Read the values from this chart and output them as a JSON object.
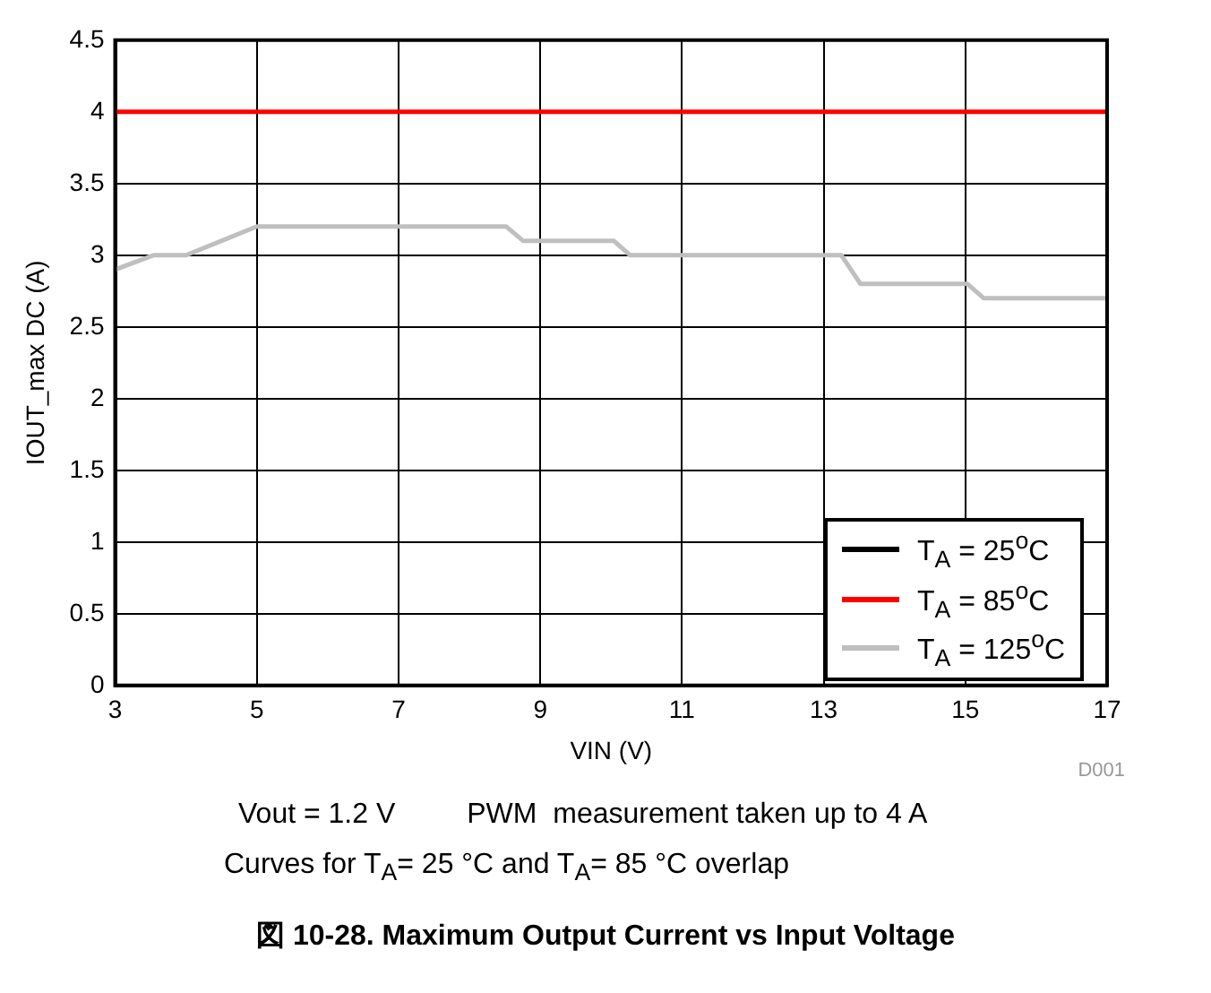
{
  "chart_data": {
    "type": "line",
    "title": "図 10-28. Maximum Output Current vs Input Voltage",
    "xlabel": "VIN (V)",
    "ylabel": "IOUT_max DC (A)",
    "xlim": [
      3,
      17
    ],
    "xticks": [
      3,
      5,
      7,
      9,
      11,
      13,
      15,
      17
    ],
    "ylim": [
      0,
      4.5
    ],
    "yticks": [
      0,
      0.5,
      1,
      1.5,
      2,
      2.5,
      3,
      3.5,
      4,
      4.5
    ],
    "grid": true,
    "legend": "bottom right",
    "marker": "none",
    "line_style": "solid",
    "series": [
      {
        "name": "T$_{A}$ = 25$^{o}$C",
        "color": "#000000"
      },
      {
        "name": "T$_{A}$ = 85$^{o}$C",
        "color": "#ff0000",
        "x": [
          3,
          17
        ],
        "values": [
          4,
          4
        ]
      },
      {
        "name": "T$_{A}$ = 125$^{o}$C",
        "color": "#bfbfbf",
        "x": [
          3,
          3.54,
          4,
          5,
          8.52,
          8.76,
          10.04,
          10.27,
          13.25,
          13.52,
          15.03,
          15.26,
          17
        ],
        "values": [
          2.9,
          3.0,
          3.0,
          3.2,
          3.2,
          3.1,
          3.1,
          3.0,
          3.0,
          2.8,
          2.8,
          2.7,
          2.7
        ]
      }
    ],
    "annotations": [
      "D001",
      "Vout = 1.2 V",
      "PWM  measurement taken up to 4 A",
      "Curves for T$_{A}$= 25 °C and T$_{A}$= 85 °C overlap"
    ]
  }
}
